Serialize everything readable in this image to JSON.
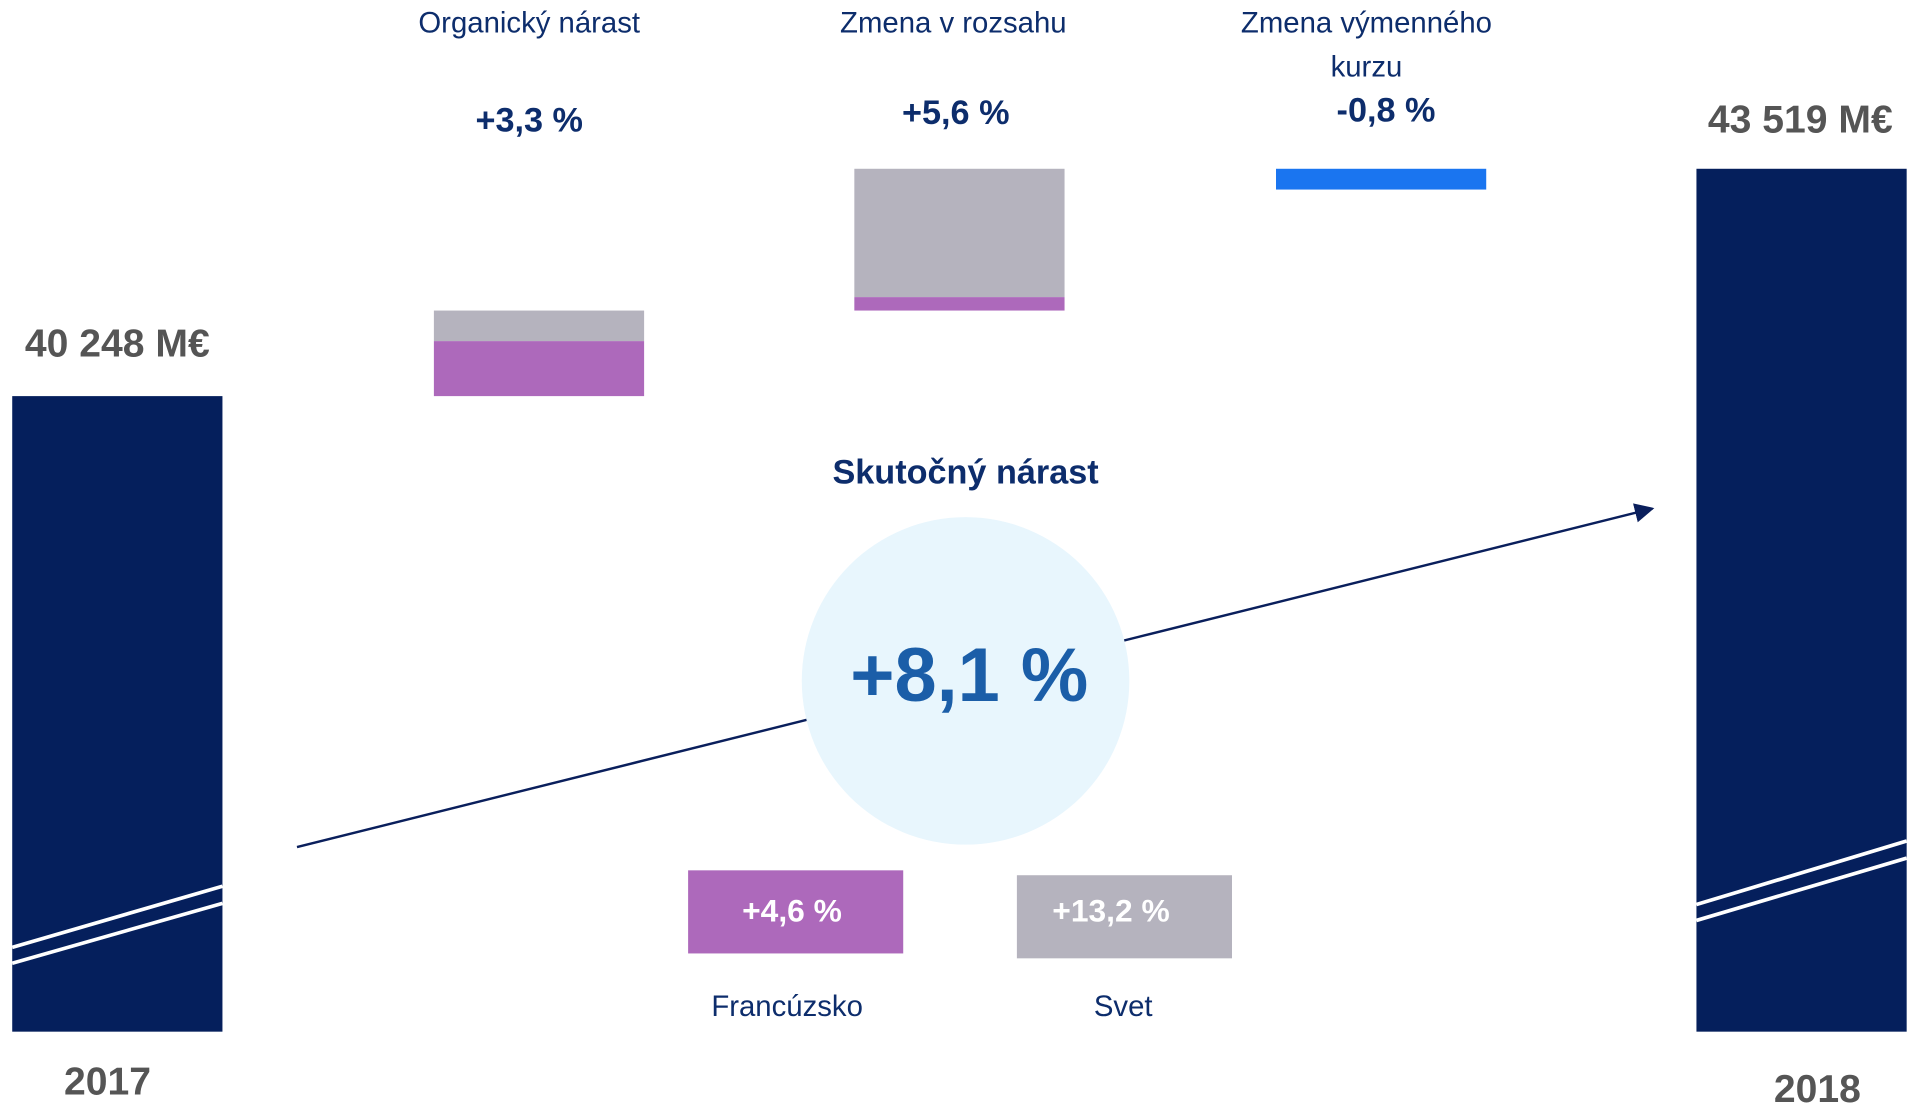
{
  "start": {
    "value": "40 248 M€",
    "year": "2017"
  },
  "end": {
    "value": "43 519 M€",
    "year": "2018"
  },
  "steps": [
    {
      "label": "Organický nárast",
      "change": "+3,3 %"
    },
    {
      "label": "Zmena v rozsahu",
      "change": "+5,6 %"
    },
    {
      "label": [
        "Zmena výmenného",
        "kurzu"
      ],
      "change": "-0,8 %"
    }
  ],
  "total": {
    "title": "Skutočný nárast",
    "change": "+8,1 %"
  },
  "breakdown": [
    {
      "change": "+4,6 %",
      "label": "Francúzsko"
    },
    {
      "change": "+13,2 %",
      "label": "Svet"
    }
  ]
}
